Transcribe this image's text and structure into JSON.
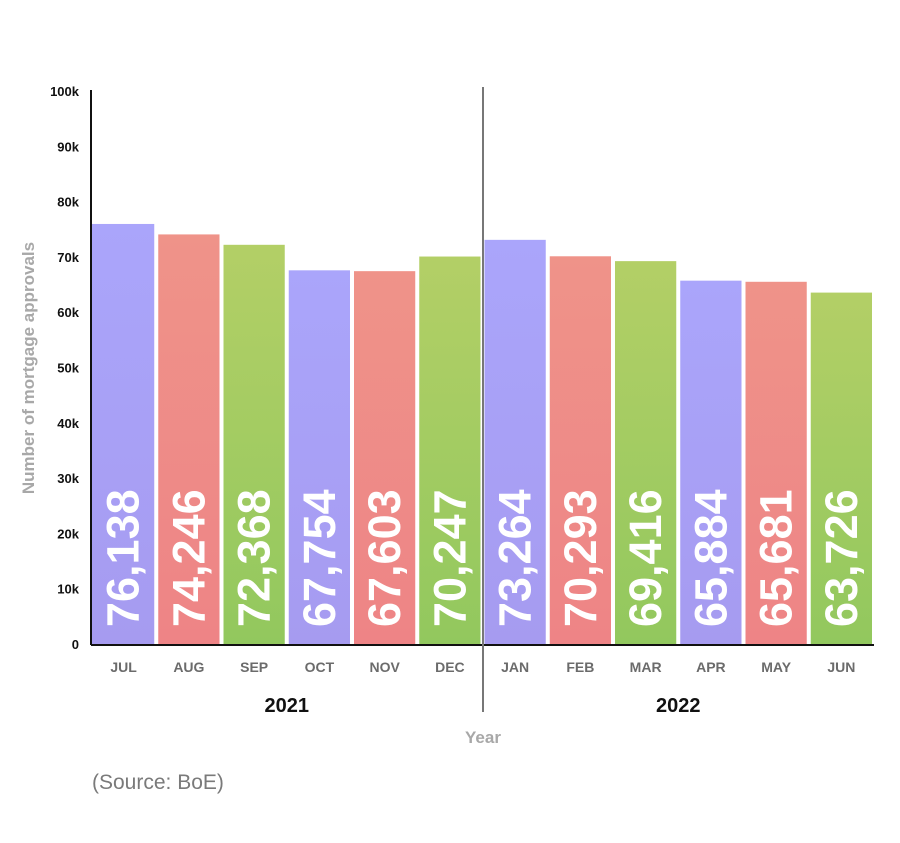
{
  "chart_data": {
    "type": "bar",
    "categories": [
      "JUL",
      "AUG",
      "SEP",
      "OCT",
      "NOV",
      "DEC",
      "JAN",
      "FEB",
      "MAR",
      "APR",
      "MAY",
      "JUN"
    ],
    "values": [
      76138,
      74246,
      72368,
      67754,
      67603,
      70247,
      73264,
      70293,
      69416,
      65884,
      65681,
      63726
    ],
    "data_labels": [
      "76,138",
      "74,246",
      "72,368",
      "67,754",
      "67,603",
      "70,247",
      "73,264",
      "70,293",
      "69,416",
      "65,884",
      "65,681",
      "63,726"
    ],
    "groups": [
      {
        "label": "2021",
        "categories": [
          "JUL",
          "AUG",
          "SEP",
          "OCT",
          "NOV",
          "DEC"
        ]
      },
      {
        "label": "2022",
        "categories": [
          "JAN",
          "FEB",
          "MAR",
          "APR",
          "MAY",
          "JUN"
        ]
      }
    ],
    "xlabel": "Year",
    "ylabel": "Number of mortgage approvals",
    "ylim": [
      0,
      100000
    ],
    "y_ticks": [
      0,
      10000,
      20000,
      30000,
      40000,
      50000,
      60000,
      70000,
      80000,
      90000,
      100000
    ],
    "y_tick_labels": [
      "0",
      "10k",
      "20k",
      "30k",
      "40k",
      "50k",
      "60k",
      "70k",
      "80k",
      "90k",
      "100k"
    ],
    "grid": false,
    "legend": "none",
    "color_cycle": [
      {
        "name": "purple",
        "top": "#aaa5fb",
        "bottom": "#a69bf0"
      },
      {
        "name": "red",
        "top": "#ef9389",
        "bottom": "#ee8486"
      },
      {
        "name": "green",
        "top": "#b3cf66",
        "bottom": "#92c85e"
      }
    ]
  },
  "source_note": "(Source: BoE)"
}
